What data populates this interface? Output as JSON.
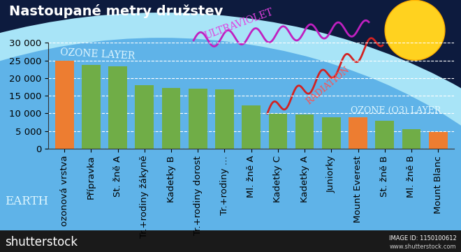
{
  "chart_data": {
    "type": "bar",
    "title": "Nastoupané metry družstev",
    "categories": [
      "ozonová vrstva",
      "Přípravka",
      "St. žně A",
      "Tr.+rodiny žákyně",
      "Kadetky B",
      "Tr.+rodiny dorost",
      "Tr.+rodiny …",
      "Ml. žně A",
      "Kadetky C",
      "Kadetky A",
      "Juniorky",
      "Mount Everest",
      "St. žně B",
      "Ml. žně B",
      "Mount Blanc"
    ],
    "values": [
      25000,
      23800,
      23300,
      18000,
      17300,
      17000,
      16800,
      12300,
      9800,
      9600,
      8900,
      8848,
      7900,
      5500,
      4808
    ],
    "colors": [
      "#ed7d31",
      "#70ad47",
      "#70ad47",
      "#70ad47",
      "#70ad47",
      "#70ad47",
      "#70ad47",
      "#70ad47",
      "#70ad47",
      "#70ad47",
      "#70ad47",
      "#ed7d31",
      "#70ad47",
      "#70ad47",
      "#ed7d31"
    ],
    "ylim": [
      0,
      30000
    ],
    "yticks": [
      0,
      {
        "value": 5000,
        "label": "5 000"
      },
      {
        "value": 10000,
        "label": "10 000"
      },
      {
        "value": 15000,
        "label": "15 000"
      },
      {
        "value": 20000,
        "label": "20 000"
      },
      {
        "value": 25000,
        "label": "25 000"
      },
      {
        "value": 30000,
        "label": "30 000"
      }
    ],
    "grid": true,
    "annotations": [
      "OZONE LAYER",
      "ULTRAVIOLET",
      "RADIATION",
      "OZONE (O3) LAYER",
      "EARTH",
      "shutterstock",
      "IMAGE ID: 1150100612",
      "www.shutterstock.com"
    ]
  }
}
